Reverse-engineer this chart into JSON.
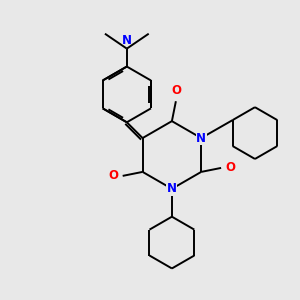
{
  "bg_color": "#e8e8e8",
  "bond_color": "#000000",
  "nitrogen_color": "#0000ff",
  "oxygen_color": "#ff0000",
  "lw": 1.4,
  "xlim": [
    0,
    3
  ],
  "ylim": [
    0,
    3
  ],
  "figsize": [
    3.0,
    3.0
  ],
  "dpi": 100
}
